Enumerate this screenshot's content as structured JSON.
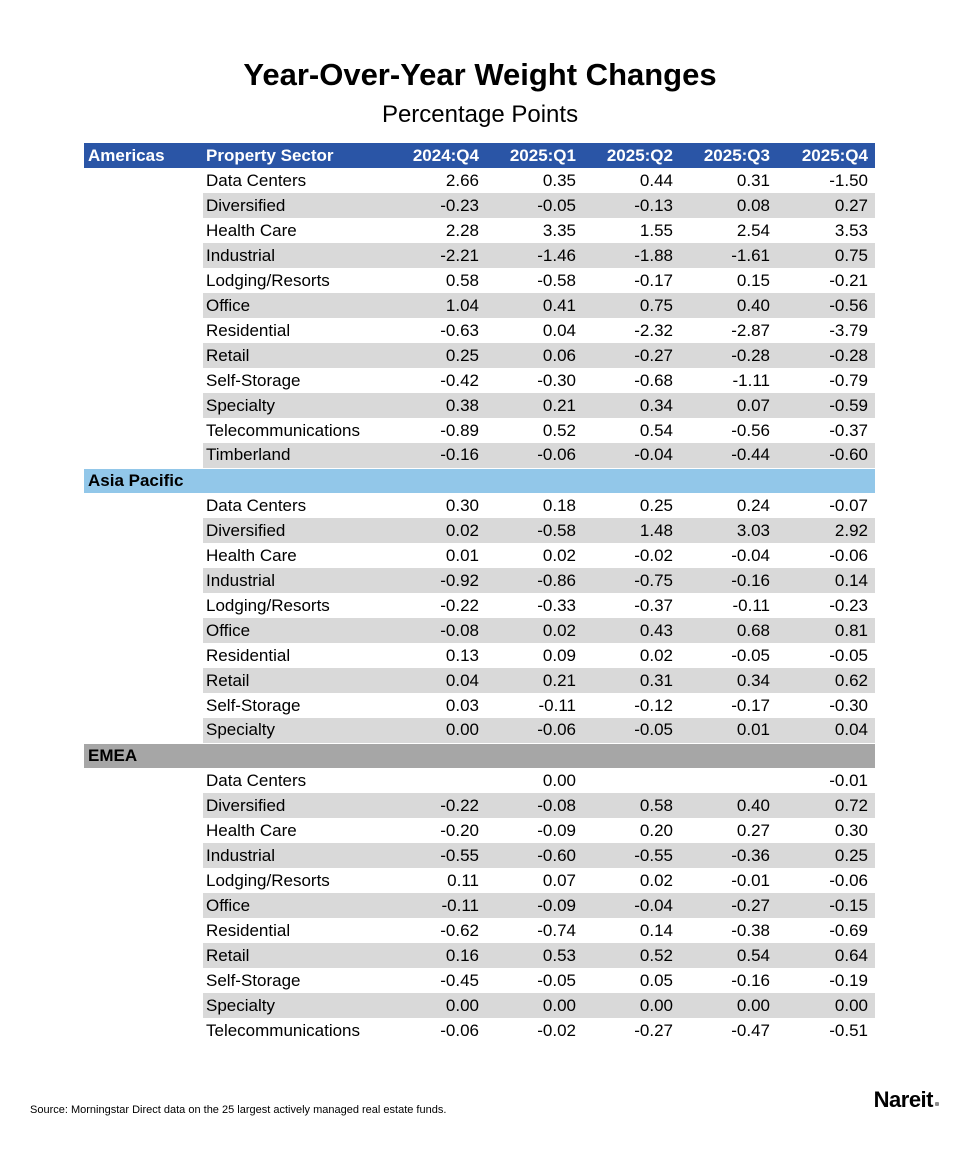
{
  "title": "Year-Over-Year Weight Changes",
  "subtitle": "Percentage Points",
  "source_note": "Source: Morningstar Direct data on the 25 largest actively managed real estate funds.",
  "logo": {
    "text": "Nareit"
  },
  "colors": {
    "header_blue": "#2A55A6",
    "header_text": "#FFFFFF",
    "row_stripe": "#D9D9D9",
    "asia_pacific_band": "#92C7E9",
    "emea_band": "#A6A6A6"
  },
  "chart_data": {
    "type": "table",
    "title": "Year-Over-Year Weight Changes",
    "subtitle": "Percentage Points",
    "header": {
      "region": "Americas",
      "sector": "Property Sector",
      "quarters": [
        "2024:Q4",
        "2025:Q1",
        "2025:Q2",
        "2025:Q3",
        "2025:Q4"
      ]
    },
    "sections": [
      {
        "region": "Americas",
        "rows": [
          {
            "sector": "Data Centers",
            "values": [
              "2.66",
              "0.35",
              "0.44",
              "0.31",
              "-1.50"
            ]
          },
          {
            "sector": "Diversified",
            "values": [
              "-0.23",
              "-0.05",
              "-0.13",
              "0.08",
              "0.27"
            ]
          },
          {
            "sector": "Health Care",
            "values": [
              "2.28",
              "3.35",
              "1.55",
              "2.54",
              "3.53"
            ]
          },
          {
            "sector": "Industrial",
            "values": [
              "-2.21",
              "-1.46",
              "-1.88",
              "-1.61",
              "0.75"
            ]
          },
          {
            "sector": "Lodging/Resorts",
            "values": [
              "0.58",
              "-0.58",
              "-0.17",
              "0.15",
              "-0.21"
            ]
          },
          {
            "sector": "Office",
            "values": [
              "1.04",
              "0.41",
              "0.75",
              "0.40",
              "-0.56"
            ]
          },
          {
            "sector": "Residential",
            "values": [
              "-0.63",
              "0.04",
              "-2.32",
              "-2.87",
              "-3.79"
            ]
          },
          {
            "sector": "Retail",
            "values": [
              "0.25",
              "0.06",
              "-0.27",
              "-0.28",
              "-0.28"
            ]
          },
          {
            "sector": "Self-Storage",
            "values": [
              "-0.42",
              "-0.30",
              "-0.68",
              "-1.11",
              "-0.79"
            ]
          },
          {
            "sector": "Specialty",
            "values": [
              "0.38",
              "0.21",
              "0.34",
              "0.07",
              "-0.59"
            ]
          },
          {
            "sector": "Telecommunications",
            "values": [
              "-0.89",
              "0.52",
              "0.54",
              "-0.56",
              "-0.37"
            ]
          },
          {
            "sector": "Timberland",
            "values": [
              "-0.16",
              "-0.06",
              "-0.04",
              "-0.44",
              "-0.60"
            ]
          }
        ]
      },
      {
        "region": "Asia Pacific",
        "band_color": "#92C7E9",
        "rows": [
          {
            "sector": "Data Centers",
            "values": [
              "0.30",
              "0.18",
              "0.25",
              "0.24",
              "-0.07"
            ]
          },
          {
            "sector": "Diversified",
            "values": [
              "0.02",
              "-0.58",
              "1.48",
              "3.03",
              "2.92"
            ]
          },
          {
            "sector": "Health Care",
            "values": [
              "0.01",
              "0.02",
              "-0.02",
              "-0.04",
              "-0.06"
            ]
          },
          {
            "sector": "Industrial",
            "values": [
              "-0.92",
              "-0.86",
              "-0.75",
              "-0.16",
              "0.14"
            ]
          },
          {
            "sector": "Lodging/Resorts",
            "values": [
              "-0.22",
              "-0.33",
              "-0.37",
              "-0.11",
              "-0.23"
            ]
          },
          {
            "sector": "Office",
            "values": [
              "-0.08",
              "0.02",
              "0.43",
              "0.68",
              "0.81"
            ]
          },
          {
            "sector": "Residential",
            "values": [
              "0.13",
              "0.09",
              "0.02",
              "-0.05",
              "-0.05"
            ]
          },
          {
            "sector": "Retail",
            "values": [
              "0.04",
              "0.21",
              "0.31",
              "0.34",
              "0.62"
            ]
          },
          {
            "sector": "Self-Storage",
            "values": [
              "0.03",
              "-0.11",
              "-0.12",
              "-0.17",
              "-0.30"
            ]
          },
          {
            "sector": "Specialty",
            "values": [
              "0.00",
              "-0.06",
              "-0.05",
              "0.01",
              "0.04"
            ]
          }
        ]
      },
      {
        "region": "EMEA",
        "band_color": "#A6A6A6",
        "rows": [
          {
            "sector": "Data Centers",
            "values": [
              "",
              "0.00",
              "",
              "",
              "-0.01"
            ]
          },
          {
            "sector": "Diversified",
            "values": [
              "-0.22",
              "-0.08",
              "0.58",
              "0.40",
              "0.72"
            ]
          },
          {
            "sector": "Health Care",
            "values": [
              "-0.20",
              "-0.09",
              "0.20",
              "0.27",
              "0.30"
            ]
          },
          {
            "sector": "Industrial",
            "values": [
              "-0.55",
              "-0.60",
              "-0.55",
              "-0.36",
              "0.25"
            ]
          },
          {
            "sector": "Lodging/Resorts",
            "values": [
              "0.11",
              "0.07",
              "0.02",
              "-0.01",
              "-0.06"
            ]
          },
          {
            "sector": "Office",
            "values": [
              "-0.11",
              "-0.09",
              "-0.04",
              "-0.27",
              "-0.15"
            ]
          },
          {
            "sector": "Residential",
            "values": [
              "-0.62",
              "-0.74",
              "0.14",
              "-0.38",
              "-0.69"
            ]
          },
          {
            "sector": "Retail",
            "values": [
              "0.16",
              "0.53",
              "0.52",
              "0.54",
              "0.64"
            ]
          },
          {
            "sector": "Self-Storage",
            "values": [
              "-0.45",
              "-0.05",
              "0.05",
              "-0.16",
              "-0.19"
            ]
          },
          {
            "sector": "Specialty",
            "values": [
              "0.00",
              "0.00",
              "0.00",
              "0.00",
              "0.00"
            ]
          },
          {
            "sector": "Telecommunications",
            "values": [
              "-0.06",
              "-0.02",
              "-0.27",
              "-0.47",
              "-0.51"
            ]
          }
        ]
      }
    ]
  }
}
